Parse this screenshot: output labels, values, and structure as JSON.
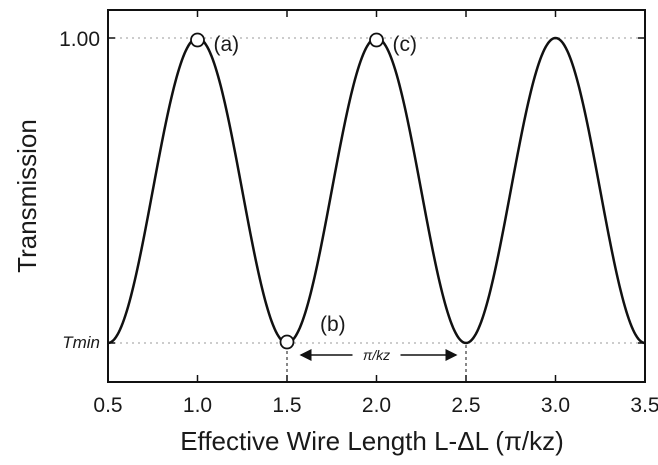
{
  "chart_data": {
    "type": "line",
    "title": "",
    "xlabel": "Effective Wire Length  L-ΔL  (π/kz)",
    "ylabel": "Transmission",
    "xlim": [
      0.5,
      3.5
    ],
    "ylim": [
      0.0,
      1.05
    ],
    "x_ticks": [
      0.5,
      1.0,
      1.5,
      2.0,
      2.5,
      3.0,
      3.5
    ],
    "x_tick_labels": [
      "0.5",
      "1.0",
      "1.5",
      "2.0",
      "2.5",
      "3.0",
      "3.5"
    ],
    "y_ticks": [
      0.1,
      1.0
    ],
    "y_tick_labels": [
      "Tmin",
      "1.00"
    ],
    "series": [
      {
        "model": "cosine",
        "period": 1.0,
        "max": 1.0,
        "min": 0.1,
        "peaks_x": [
          1.0,
          2.0,
          3.0
        ],
        "minima_x": [
          0.5,
          1.5,
          2.5,
          3.5
        ]
      }
    ],
    "markers": [
      {
        "label": "(a)",
        "x": 1.0,
        "y": 1.0
      },
      {
        "label": "(b)",
        "x": 1.5,
        "y": 0.1
      },
      {
        "label": "(c)",
        "x": 2.0,
        "y": 1.0
      }
    ],
    "interval_annotation": {
      "label": "π/kz",
      "x_start": 1.5,
      "x_end": 2.5
    },
    "grid": "dotted reference lines at y=1.00 and y=Tmin",
    "color": "#111111"
  }
}
